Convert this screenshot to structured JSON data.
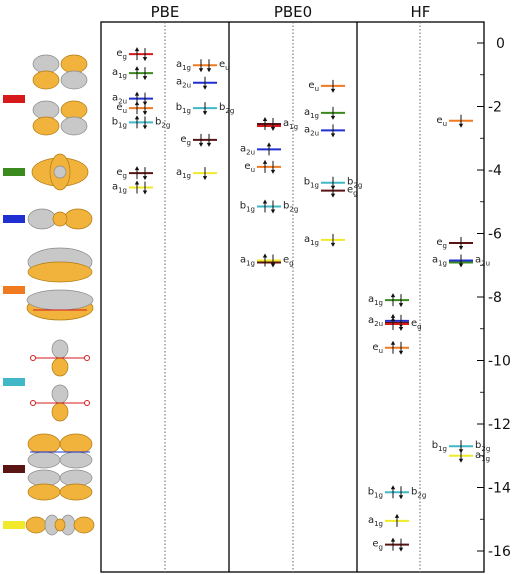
{
  "headers": [
    "PBE",
    "PBE0",
    "HF"
  ],
  "y_axis": {
    "ticks": [
      "0",
      "-2",
      "-4",
      "-6",
      "-8",
      "-10",
      "-12",
      "-14",
      "-16"
    ],
    "min": -16.8,
    "max": 0.2
  },
  "colors": {
    "eg": "#d7191c",
    "a1g_green": "#3a8a1e",
    "a2u": "#1f2fd0",
    "eu": "#f07a20",
    "b_cyan": "#40b8c8",
    "eg_dark": "#5a1414",
    "a1g_yellow": "#f0ea2a"
  },
  "legend": [
    {
      "color": "#d7191c"
    },
    {
      "color": "#3a8a1e"
    },
    {
      "color": "#1f2fd0"
    },
    {
      "color": "#f07a20"
    },
    {
      "color": "#40b8c8"
    },
    {
      "color": "#5a1414"
    },
    {
      "color": "#f0ea2a"
    }
  ],
  "panels": [
    {
      "name": "PBE",
      "left": [
        {
          "e": -0.35,
          "c": "#d7191c",
          "label": "e",
          "sub": "g",
          "side": "L",
          "arrows": "ud"
        },
        {
          "e": -0.95,
          "c": "#3a8a1e",
          "label": "a",
          "sub": "1g",
          "side": "L",
          "arrows": "ud"
        },
        {
          "e": -1.75,
          "c": "#1f2fd0",
          "label": "a",
          "sub": "2u",
          "side": "L",
          "arrows": "ud"
        },
        {
          "e": -2.05,
          "c": "#f07a20",
          "label": "e",
          "sub": "u",
          "side": "L",
          "arrows": "ud"
        },
        {
          "e": -2.5,
          "c": "#40b8c8",
          "label": "b",
          "sub": "1g",
          "side": "L",
          "arrows": "ud",
          "rlabel": "b",
          "rsub": "2g"
        },
        {
          "e": -4.1,
          "c": "#5a1414",
          "label": "e",
          "sub": "g",
          "side": "L",
          "arrows": "ud"
        },
        {
          "e": -4.55,
          "c": "#f0ea2a",
          "label": "a",
          "sub": "1g",
          "side": "L",
          "arrows": "ud"
        }
      ],
      "right": [
        {
          "e": -0.7,
          "c": "#f07a20",
          "label": "a",
          "sub": "1g",
          "side": "L",
          "arrows": "dd",
          "rlabel": "e",
          "rsub": "u"
        },
        {
          "e": -1.25,
          "c": "#1f2fd0",
          "label": "a",
          "sub": "2u",
          "side": "R",
          "arrows": "d"
        },
        {
          "e": -2.05,
          "c": "#40b8c8",
          "label": "b",
          "sub": "1g",
          "side": "L",
          "arrows": "d",
          "rlabel": "b",
          "rsub": "2g"
        },
        {
          "e": -3.05,
          "c": "#5a1414",
          "label": "e",
          "sub": "g",
          "side": "R",
          "arrows": "dd"
        },
        {
          "e": -4.1,
          "c": "#f0ea2a",
          "label": "a",
          "sub": "1g",
          "side": "R",
          "arrows": "d"
        }
      ]
    },
    {
      "name": "PBE0",
      "left": [
        {
          "e": -2.55,
          "c": "#5a1414",
          "label": "",
          "sub": "",
          "side": "R",
          "arrows": "ud",
          "rlabel": "a",
          "rsub": "1g",
          "extra": "#d7191c"
        },
        {
          "e": -3.35,
          "c": "#1f2fd0",
          "label": "a",
          "sub": "2u",
          "side": "L",
          "arrows": "u"
        },
        {
          "e": -3.9,
          "c": "#f07a20",
          "label": "e",
          "sub": "u",
          "side": "L",
          "arrows": "ud"
        },
        {
          "e": -5.15,
          "c": "#40b8c8",
          "label": "b",
          "sub": "1g",
          "side": "L",
          "arrows": "ud",
          "rlabel": "b",
          "rsub": "2g"
        },
        {
          "e": -6.85,
          "c": "#f0ea2a",
          "label": "a",
          "sub": "1g",
          "side": "L",
          "arrows": "ud",
          "rlabel": "e",
          "rsub": "g",
          "extra": "#5a1414"
        }
      ],
      "right": [
        {
          "e": -1.35,
          "c": "#f07a20",
          "label": "e",
          "sub": "u",
          "side": "R",
          "arrows": "d"
        },
        {
          "e": -2.2,
          "c": "#3a8a1e",
          "label": "a",
          "sub": "1g",
          "side": "R",
          "arrows": "d"
        },
        {
          "e": -2.75,
          "c": "#1f2fd0",
          "label": "a",
          "sub": "2u",
          "side": "R",
          "arrows": "d"
        },
        {
          "e": -4.4,
          "c": "#40b8c8",
          "label": "b",
          "sub": "1g",
          "side": "L",
          "arrows": "d",
          "rlabel": "b",
          "rsub": "2g"
        },
        {
          "e": -4.65,
          "c": "#5a1414",
          "label": "",
          "sub": "",
          "side": "R",
          "arrows": "d",
          "rlabel": "e",
          "rsub": "g"
        },
        {
          "e": -6.2,
          "c": "#f0ea2a",
          "label": "a",
          "sub": "1g",
          "side": "R",
          "arrows": "d"
        }
      ]
    },
    {
      "name": "HF",
      "left": [
        {
          "e": -8.1,
          "c": "#3a8a1e",
          "label": "a",
          "sub": "1g",
          "side": "L",
          "arrows": "ud"
        },
        {
          "e": -8.75,
          "c": "#1f2fd0",
          "label": "a",
          "sub": "2u",
          "side": "L",
          "arrows": "ud",
          "extra": "#5a1414"
        },
        {
          "e": -8.85,
          "c": "#d7191c",
          "label": "",
          "sub": "",
          "side": "R",
          "arrows": "ud",
          "rlabel": "e",
          "rsub": "g"
        },
        {
          "e": -9.6,
          "c": "#f07a20",
          "label": "e",
          "sub": "u",
          "side": "L",
          "arrows": "ud"
        },
        {
          "e": -14.15,
          "c": "#40b8c8",
          "label": "b",
          "sub": "1g",
          "side": "L",
          "arrows": "ud",
          "rlabel": "b",
          "rsub": "2g"
        },
        {
          "e": -15.05,
          "c": "#f0ea2a",
          "label": "a",
          "sub": "1g",
          "side": "L",
          "arrows": "u"
        },
        {
          "e": -15.8,
          "c": "#5a1414",
          "label": "e",
          "sub": "g",
          "side": "L",
          "arrows": "ud"
        }
      ],
      "right": [
        {
          "e": -2.45,
          "c": "#f07a20",
          "label": "e",
          "sub": "u",
          "side": "R",
          "arrows": "d"
        },
        {
          "e": -6.3,
          "c": "#5a1414",
          "label": "e",
          "sub": "g",
          "side": "R",
          "arrows": "d"
        },
        {
          "e": -6.85,
          "c": "#1f2fd0",
          "label": "a",
          "sub": "1g",
          "side": "L",
          "arrows": "d",
          "rlabel": "a",
          "rsub": "2u",
          "extra": "#3a8a1e"
        },
        {
          "e": -12.7,
          "c": "#40b8c8",
          "label": "b",
          "sub": "1g",
          "side": "L",
          "arrows": "d",
          "rlabel": "b",
          "rsub": "2g"
        },
        {
          "e": -13.0,
          "c": "#f0ea2a",
          "label": "",
          "sub": "",
          "side": "R",
          "arrows": "d",
          "rlabel": "a",
          "rsub": "1g"
        }
      ]
    }
  ]
}
